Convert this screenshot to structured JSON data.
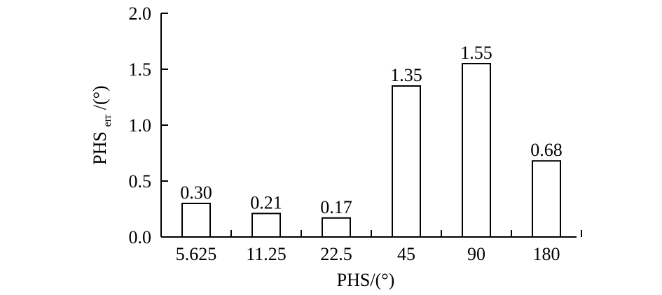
{
  "chart_data": {
    "type": "bar",
    "categories": [
      "5.625",
      "11.25",
      "22.5",
      "45",
      "90",
      "180"
    ],
    "values": [
      0.3,
      0.21,
      0.17,
      1.35,
      1.55,
      0.68
    ],
    "value_labels": [
      "0.30",
      "0.21",
      "0.17",
      "1.35",
      "1.55",
      "0.68"
    ],
    "xlabel": "PHS/(°)",
    "ylabel": {
      "main": "PHS",
      "subscript": "err",
      "suffix": "/(°)"
    },
    "ylim": [
      0,
      2.0
    ],
    "yticks": [
      0.0,
      0.5,
      1.0,
      1.5,
      2.0
    ],
    "ytick_labels": [
      "0.0",
      "0.5",
      "1.0",
      "1.5",
      "2.0"
    ],
    "grid": false,
    "legend": "none",
    "colors": {
      "axis": "#000000",
      "bar_fill": "#ffffff",
      "bar_stroke": "#000000",
      "text": "#000000"
    }
  }
}
